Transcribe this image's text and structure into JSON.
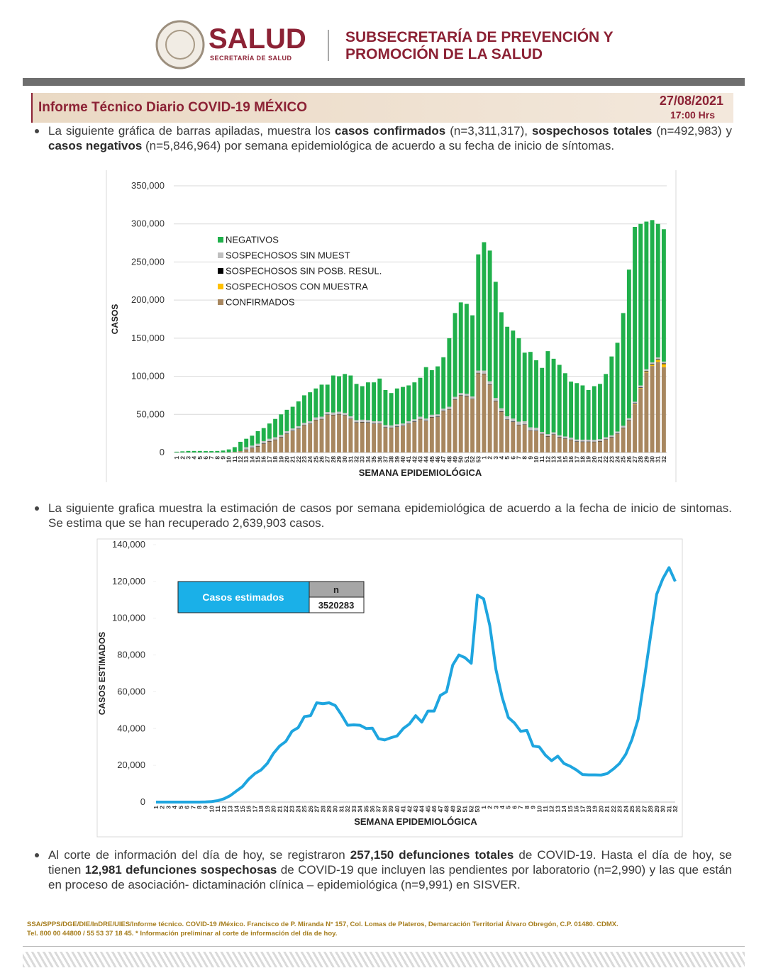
{
  "header": {
    "logo_title": "SALUD",
    "logo_subtitle": "SECRETARÍA DE SALUD",
    "subsecretaria": [
      "SUBSECRETARÍA DE PREVENCIÓN Y",
      "PROMOCIÓN DE LA SALUD"
    ]
  },
  "report": {
    "title": "Informe Técnico Diario COVID-19 MÉXICO",
    "date": "27/08/2021",
    "time": "17:00 Hrs"
  },
  "bullets": [
    {
      "runs": [
        {
          "text": "La siguiente gráfica de barras apiladas, muestra los ",
          "bold": false
        },
        {
          "text": "casos confirmados",
          "bold": true
        },
        {
          "text": " (n=3,311,317), ",
          "bold": false
        },
        {
          "text": "sospechosos totales",
          "bold": true
        },
        {
          "text": " (n=492,983) y ",
          "bold": false
        },
        {
          "text": "casos negativos",
          "bold": true
        },
        {
          "text": " (n=5,846,964) por semana epidemiológica de acuerdo a su fecha de inicio de síntomas.",
          "bold": false
        }
      ]
    },
    {
      "runs": [
        {
          "text": "La siguiente grafica muestra la estimación de casos por semana epidemiológica de acuerdo a la fecha de inicio de sintomas. Se estima que se han recuperado 2,639,903 casos.",
          "bold": false
        }
      ]
    },
    {
      "runs": [
        {
          "text": "Al corte de información del día de hoy, se registraron ",
          "bold": false
        },
        {
          "text": "257,150 defunciones totales",
          "bold": true
        },
        {
          "text": " de COVID-19. Hasta el día de hoy, se tienen ",
          "bold": false
        },
        {
          "text": "12,981 defunciones sospechosas",
          "bold": true
        },
        {
          "text": " de COVID-19 que incluyen las pendientes por laboratorio (n=2,990) y las que están en proceso de asociación- dictaminación clínica – epidemiológica (n=9,991) en SISVER.",
          "bold": false
        }
      ]
    }
  ],
  "chart_data": [
    {
      "type": "stacked_bar",
      "x_label": "SEMANA EPIDEMIOLÓGICA",
      "y_label": "CASOS",
      "grid": true,
      "legend": "upper left",
      "ylim": [
        0,
        350000
      ],
      "yticks": [
        0,
        {
          "value": 50000,
          "label": "50,000"
        },
        {
          "value": 100000,
          "label": "100,000"
        },
        {
          "value": 150000,
          "label": "150,000"
        },
        {
          "value": 200000,
          "label": "200,000"
        },
        {
          "value": 250000,
          "label": "250,000"
        },
        {
          "value": 300000,
          "label": "300,000"
        },
        {
          "value": 350000,
          "label": "350,000"
        }
      ],
      "categories": [
        "1",
        "2",
        "3",
        "4",
        "5",
        "6",
        "7",
        "8",
        "9",
        "10",
        "11",
        "12",
        "13",
        "14",
        "15",
        "16",
        "17",
        "18",
        "19",
        "20",
        "21",
        "22",
        "23",
        "24",
        "25",
        "26",
        "27",
        "28",
        "29",
        "30",
        "31",
        "32",
        "33",
        "34",
        "35",
        "36",
        "37",
        "38",
        "39",
        "40",
        "41",
        "42",
        "43",
        "44",
        "45",
        "46",
        "47",
        "48",
        "49",
        "50",
        "51",
        "52",
        "53",
        "1",
        "2",
        "3",
        "4",
        "5",
        "6",
        "7",
        "8",
        "9",
        "10",
        "11",
        "12",
        "13",
        "14",
        "15",
        "16",
        "17",
        "18",
        "19",
        "20",
        "21",
        "22",
        "23",
        "24",
        "25",
        "26",
        "27",
        "28",
        "29",
        "30",
        "31",
        "32"
      ],
      "series": [
        {
          "name": "NEGATIVOS",
          "color": "#20b04b",
          "values": [
            1000,
            1500,
            2000,
            2000,
            2000,
            1800,
            1800,
            2000,
            2400,
            3700,
            6200,
            12200,
            11000,
            13000,
            16500,
            17000,
            20000,
            24000,
            27000,
            28000,
            28500,
            32500,
            36000,
            38000,
            38000,
            42000,
            36000,
            48500,
            46500,
            51000,
            53500,
            47500,
            44000,
            49500,
            51000,
            56000,
            46000,
            42500,
            47000,
            48000,
            47000,
            48500,
            51000,
            67500,
            58500,
            63000,
            67500,
            90000,
            110000,
            119000,
            118000,
            106500,
            152500,
            168500,
            171500,
            152500,
            126000,
            117500,
            115500,
            109500,
            90000,
            99000,
            88500,
            84000,
            109000,
            96500,
            92500,
            83000,
            73500,
            74000,
            71200,
            65200,
            70300,
            72500,
            83000,
            103500,
            116500,
            148000,
            195000,
            229400,
            212100,
            193700,
            186700,
            175200,
            173700
          ]
        },
        {
          "name": "SOSPECHOSOS SIN MUEST",
          "color": "#bfbfbf",
          "values": [
            0,
            0,
            0,
            0,
            0,
            0,
            0,
            0,
            0,
            0,
            0,
            0,
            3000,
            3000,
            3000,
            3000,
            3000,
            3000,
            3000,
            3000,
            3000,
            3000,
            3000,
            3000,
            3000,
            3000,
            3000,
            3000,
            3000,
            3000,
            3000,
            3000,
            3000,
            3000,
            3000,
            3000,
            3000,
            3000,
            3000,
            3000,
            3000,
            3000,
            3000,
            3000,
            3000,
            3000,
            3000,
            3000,
            3000,
            3000,
            3000,
            3000,
            3000,
            4000,
            4000,
            4000,
            4000,
            4000,
            4000,
            4000,
            4000,
            4000,
            4000,
            2500,
            2500,
            2500,
            2500,
            2500,
            2500,
            2500,
            2500,
            2500,
            2500,
            2500,
            2500,
            2500,
            2500,
            2500,
            2500,
            2500,
            2500,
            2500,
            2500,
            2500,
            2500
          ]
        },
        {
          "name": "SOSPECHOSOS SIN POSB. RESUL.",
          "color": "#000000",
          "values": [
            0,
            0,
            0,
            0,
            0,
            0,
            0,
            0,
            0,
            0,
            0,
            0,
            500,
            500,
            500,
            500,
            500,
            500,
            500,
            500,
            500,
            500,
            500,
            500,
            500,
            500,
            500,
            500,
            500,
            500,
            500,
            500,
            500,
            500,
            500,
            500,
            500,
            500,
            500,
            500,
            500,
            500,
            500,
            500,
            500,
            500,
            500,
            500,
            500,
            500,
            500,
            500,
            500,
            500,
            500,
            500,
            500,
            500,
            500,
            500,
            500,
            500,
            500,
            500,
            500,
            500,
            500,
            500,
            500,
            500,
            500,
            500,
            500,
            500,
            500,
            500,
            500,
            500,
            500,
            800,
            800,
            800,
            800,
            800,
            800
          ]
        },
        {
          "name": "SOSPECHOSOS CON MUESTRA",
          "color": "#ffc000",
          "values": [
            0,
            0,
            0,
            0,
            0,
            0,
            0,
            0,
            0,
            0,
            0,
            0,
            0,
            0,
            0,
            0,
            0,
            0,
            0,
            0,
            0,
            0,
            0,
            0,
            0,
            0,
            0,
            0,
            0,
            0,
            0,
            0,
            0,
            0,
            0,
            0,
            0,
            0,
            0,
            0,
            0,
            0,
            0,
            0,
            0,
            0,
            0,
            0,
            0,
            0,
            0,
            0,
            0,
            0,
            0,
            0,
            0,
            0,
            0,
            0,
            0,
            0,
            0,
            0,
            0,
            0,
            0,
            0,
            0,
            0,
            0,
            0,
            0,
            0,
            0,
            0,
            0,
            0,
            0,
            300,
            600,
            1000,
            1500,
            2500,
            4000
          ]
        },
        {
          "name": "CONFIRMADOS",
          "color": "#a8875f",
          "values": [
            0,
            0,
            0,
            0,
            0,
            0,
            0,
            0,
            100,
            300,
            800,
            1800,
            3500,
            5500,
            8000,
            11500,
            14500,
            16500,
            19500,
            24500,
            28000,
            31000,
            35500,
            37500,
            42500,
            43500,
            49500,
            49000,
            50000,
            48500,
            44000,
            39000,
            39500,
            39000,
            37500,
            37500,
            32500,
            32000,
            33500,
            34500,
            37500,
            40000,
            43500,
            41000,
            46000,
            46500,
            54000,
            56500,
            69500,
            74500,
            73500,
            70000,
            104000,
            103000,
            89000,
            67000,
            53500,
            43000,
            40000,
            36000,
            36500,
            28500,
            28000,
            24000,
            21000,
            23500,
            19500,
            18000,
            16500,
            14000,
            13800,
            13800,
            13700,
            14500,
            17000,
            19500,
            24500,
            32000,
            42000,
            63000,
            84000,
            105000,
            113500,
            119000,
            112000
          ]
        }
      ]
    },
    {
      "type": "line",
      "x_label": "SEMANA EPIDEMIOLÓGICA",
      "y_label": "CASOS ESTIMADOS",
      "grid": false,
      "color": "#1ea5df",
      "ylim": [
        0,
        140000
      ],
      "yticks": [
        0,
        {
          "value": 20000,
          "label": "20,000"
        },
        {
          "value": 40000,
          "label": "40,000"
        },
        {
          "value": 60000,
          "label": "60,000"
        },
        {
          "value": 80000,
          "label": "80,000"
        },
        {
          "value": 100000,
          "label": "100,000"
        },
        {
          "value": 120000,
          "label": "120,000"
        },
        {
          "value": 140000,
          "label": "140,000"
        }
      ],
      "categories": [
        "1",
        "2",
        "3",
        "4",
        "5",
        "6",
        "7",
        "8",
        "9",
        "10",
        "11",
        "12",
        "13",
        "14",
        "15",
        "16",
        "17",
        "18",
        "19",
        "20",
        "21",
        "22",
        "23",
        "24",
        "25",
        "26",
        "27",
        "28",
        "29",
        "30",
        "31",
        "32",
        "33",
        "34",
        "35",
        "36",
        "37",
        "38",
        "39",
        "40",
        "41",
        "42",
        "43",
        "44",
        "45",
        "46",
        "47",
        "48",
        "49",
        "50",
        "51",
        "52",
        "53",
        "1",
        "2",
        "3",
        "4",
        "5",
        "6",
        "7",
        "8",
        "9",
        "10",
        "11",
        "12",
        "13",
        "14",
        "15",
        "16",
        "17",
        "18",
        "19",
        "20",
        "21",
        "22",
        "23",
        "24",
        "25",
        "26",
        "27",
        "28",
        "29",
        "30",
        "31",
        "32"
      ],
      "values": [
        0,
        0,
        0,
        0,
        0,
        0,
        0,
        0,
        100,
        300,
        800,
        1800,
        3500,
        6000,
        8500,
        12500,
        15500,
        17500,
        21000,
        26500,
        30500,
        33000,
        38500,
        40500,
        46500,
        47000,
        54000,
        53500,
        54000,
        52500,
        47500,
        41800,
        42000,
        41800,
        40000,
        40200,
        34500,
        33800,
        35000,
        36000,
        40000,
        42500,
        47000,
        43500,
        49500,
        49500,
        58000,
        60000,
        74500,
        80000,
        78500,
        75500,
        112500,
        110500,
        96000,
        72000,
        57000,
        46000,
        43000,
        38500,
        39000,
        30500,
        30000,
        25500,
        22500,
        25000,
        21000,
        19500,
        17500,
        15000,
        14800,
        14800,
        14700,
        15500,
        18000,
        21000,
        26000,
        34000,
        45000,
        67000,
        90000,
        113000,
        121500,
        127500,
        120000
      ],
      "annotation": {
        "label": "Casos estimados",
        "header": "n",
        "value": 3520283
      }
    }
  ],
  "footer": [
    "SSA/SPPS/DGE/DIE/InDRE/UIES/Informe técnico. COVID-19 /México. Francisco de P. Miranda N° 157, Col. Lomas de Plateros, Demarcación Territorial Álvaro Obregón, C.P. 01480. CDMX.",
    "Tel. 800 00 44800 / 55 53 37 18 45. * Información preliminar al corte de información del día de hoy."
  ]
}
